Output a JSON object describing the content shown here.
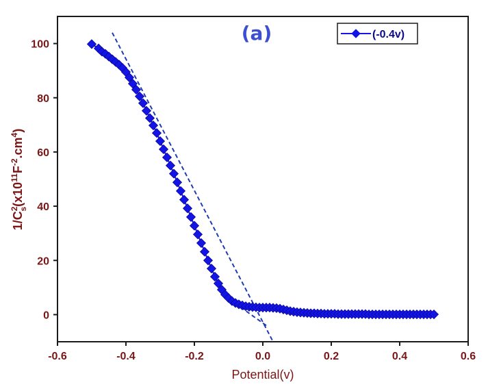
{
  "chart_data": {
    "type": "scatter",
    "panel_label": "(a)",
    "xlabel": "Potential(v)",
    "ylabel": {
      "main": "1/C",
      "sup1": "2",
      "sub1": "s",
      "paren_open": "(x10",
      "sup2": "11",
      "mid": "F",
      "sup3": "-2",
      "tail": ".cm",
      "sup4": "4",
      "paren_close": ")"
    },
    "xlim": [
      -0.6,
      0.6
    ],
    "ylim": [
      -10,
      110
    ],
    "xticks": [
      -0.6,
      -0.4,
      -0.2,
      0.0,
      0.2,
      0.4,
      0.6
    ],
    "xtick_labels": [
      "-0.6",
      "-0.4",
      "-0.2",
      "0.0",
      "0.2",
      "0.4",
      "0.6"
    ],
    "yticks": [
      0,
      20,
      40,
      60,
      80,
      100
    ],
    "ytick_labels": [
      "0",
      "20",
      "40",
      "60",
      "80",
      "100"
    ],
    "legend": {
      "position": "top-right"
    },
    "grid": false,
    "colors": {
      "series": "#1414e6",
      "axis": "#7a1616",
      "fit_line": "#1f3bb3",
      "panel_label": "#3c4fd0"
    },
    "series": [
      {
        "name": "(-0.4v)",
        "marker": "diamond",
        "x": [
          -0.5,
          -0.48,
          -0.47,
          -0.46,
          -0.45,
          -0.44,
          -0.43,
          -0.42,
          -0.41,
          -0.4,
          -0.39,
          -0.38,
          -0.37,
          -0.36,
          -0.35,
          -0.34,
          -0.33,
          -0.32,
          -0.31,
          -0.3,
          -0.29,
          -0.28,
          -0.27,
          -0.26,
          -0.25,
          -0.24,
          -0.23,
          -0.22,
          -0.21,
          -0.2,
          -0.19,
          -0.18,
          -0.17,
          -0.16,
          -0.15,
          -0.14,
          -0.13,
          -0.12,
          -0.11,
          -0.1,
          -0.09,
          -0.08,
          -0.07,
          -0.06,
          -0.05,
          -0.04,
          -0.03,
          -0.02,
          -0.01,
          0.0,
          0.01,
          0.02,
          0.03,
          0.04,
          0.05,
          0.06,
          0.07,
          0.08,
          0.09,
          0.1,
          0.11,
          0.12,
          0.13,
          0.14,
          0.15,
          0.16,
          0.17,
          0.18,
          0.19,
          0.2,
          0.21,
          0.22,
          0.23,
          0.24,
          0.25,
          0.26,
          0.27,
          0.28,
          0.29,
          0.3,
          0.31,
          0.32,
          0.33,
          0.34,
          0.35,
          0.36,
          0.37,
          0.38,
          0.39,
          0.4,
          0.41,
          0.42,
          0.43,
          0.44,
          0.45,
          0.46,
          0.47,
          0.48,
          0.49,
          0.5
        ],
        "y": [
          99.8,
          98.2,
          97.0,
          96.2,
          95.2,
          94.2,
          93.2,
          92.2,
          91.0,
          89.5,
          87.5,
          85.2,
          83.0,
          80.5,
          78.0,
          75.2,
          72.5,
          69.8,
          67.0,
          64.0,
          61.0,
          58.0,
          55.0,
          52.0,
          48.8,
          45.6,
          42.4,
          39.2,
          36.0,
          32.8,
          29.6,
          26.4,
          23.2,
          20.0,
          17.0,
          14.0,
          11.5,
          9.2,
          7.4,
          6.1,
          5.0,
          4.3,
          3.8,
          3.4,
          3.1,
          2.9,
          2.8,
          2.7,
          2.6,
          2.6,
          2.6,
          2.6,
          2.5,
          2.4,
          2.2,
          1.9,
          1.6,
          1.3,
          1.1,
          0.9,
          0.8,
          0.7,
          0.6,
          0.5,
          0.5,
          0.4,
          0.4,
          0.3,
          0.3,
          0.3,
          0.3,
          0.2,
          0.2,
          0.2,
          0.2,
          0.2,
          0.2,
          0.2,
          0.2,
          0.2,
          0.1,
          0.1,
          0.1,
          0.1,
          0.1,
          0.1,
          0.1,
          0.1,
          0.1,
          0.1,
          0.1,
          0.1,
          0.1,
          0.1,
          0.1,
          0.1,
          0.1,
          0.1,
          0.1,
          0.1
        ]
      }
    ],
    "fit_line": {
      "style": "dashed",
      "x": [
        -0.44,
        0.03
      ],
      "y": [
        104,
        -10
      ]
    },
    "annotation_arrow": {
      "from": [
        0.01,
        -4
      ],
      "to": [
        -0.09,
        5
      ]
    }
  }
}
